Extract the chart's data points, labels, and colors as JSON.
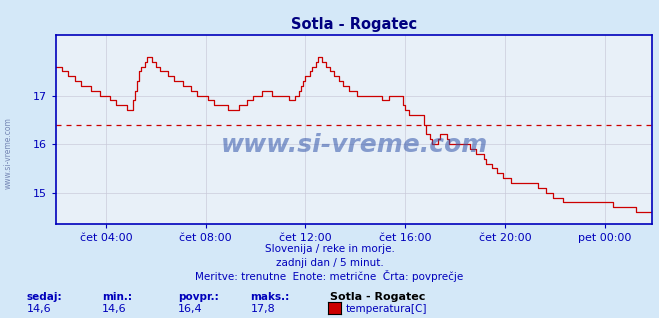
{
  "title": "Sotla - Rogatec",
  "title_color": "#000080",
  "bg_color": "#d4e8f8",
  "plot_bg_color": "#e8f0f8",
  "grid_color": "#c8c8d8",
  "axis_color": "#0000bb",
  "line_color": "#cc0000",
  "avg_value": 16.4,
  "ymin": 14.35,
  "ymax": 18.25,
  "yticks": [
    15,
    16,
    17
  ],
  "watermark": "www.si-vreme.com",
  "watermark_left": "www.si-vreme.com",
  "subtitle1": "Slovenija / reke in morje.",
  "subtitle2": "zadnji dan / 5 minut.",
  "subtitle3": "Meritve: trenutne  Enote: metrične  Črta: povprečje",
  "footer_labels": [
    "sedaj:",
    "min.:",
    "povpr.:",
    "maks.:"
  ],
  "footer_values": [
    "14,6",
    "14,6",
    "16,4",
    "17,8"
  ],
  "footer_station": "Sotla - Rogatec",
  "footer_series": "temperatura[C]",
  "legend_color": "#cc0000",
  "xtick_labels": [
    "čet 04:00",
    "čet 08:00",
    "čet 12:00",
    "čet 16:00",
    "čet 20:00",
    "pet 00:00"
  ],
  "keypoints_x": [
    0,
    4,
    10,
    18,
    24,
    30,
    36,
    40,
    44,
    48,
    55,
    62,
    70,
    78,
    86,
    90,
    96,
    100,
    108,
    114,
    118,
    122,
    126,
    130,
    136,
    142,
    148,
    154,
    158,
    162,
    166,
    168,
    172,
    176,
    178,
    182,
    186,
    190,
    196,
    204,
    210,
    216,
    222,
    228,
    234,
    240,
    248,
    256,
    264,
    270,
    276,
    282,
    287
  ],
  "keypoints_y": [
    17.6,
    17.5,
    17.3,
    17.1,
    17.0,
    16.8,
    16.7,
    17.5,
    17.8,
    17.6,
    17.4,
    17.2,
    17.0,
    16.8,
    16.7,
    16.8,
    17.0,
    17.1,
    17.0,
    16.9,
    17.2,
    17.5,
    17.8,
    17.6,
    17.3,
    17.1,
    17.0,
    17.0,
    16.9,
    17.0,
    17.0,
    16.7,
    16.6,
    16.6,
    16.2,
    16.0,
    16.2,
    16.0,
    16.0,
    15.8,
    15.5,
    15.3,
    15.2,
    15.2,
    15.1,
    14.9,
    14.8,
    14.8,
    14.8,
    14.7,
    14.7,
    14.6,
    14.6
  ]
}
